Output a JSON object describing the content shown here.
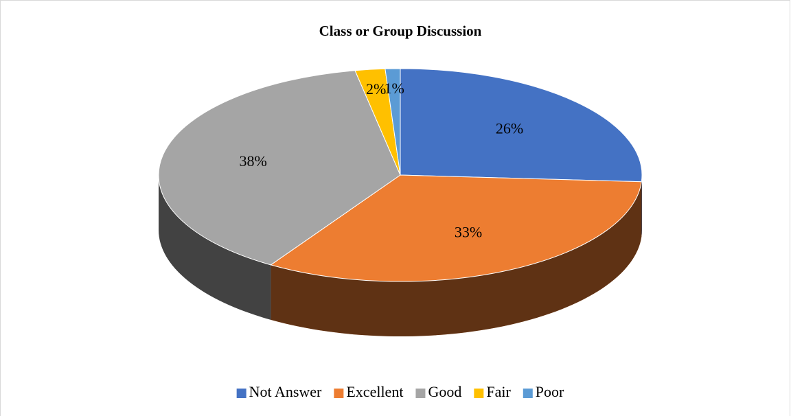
{
  "chart_data": {
    "type": "pie",
    "title": "Class or Group Discussion",
    "categories": [
      "Not Answer",
      "Excellent",
      "Good",
      "Fair",
      "Poor"
    ],
    "values": [
      26,
      33,
      38,
      2,
      1
    ],
    "value_labels": [
      "26%",
      "33%",
      "38%",
      "2%",
      "1%"
    ],
    "colors": [
      "#4472c4",
      "#ed7d31",
      "#a5a5a5",
      "#ffc000",
      "#5b9bd5"
    ],
    "legend": "bottom"
  }
}
